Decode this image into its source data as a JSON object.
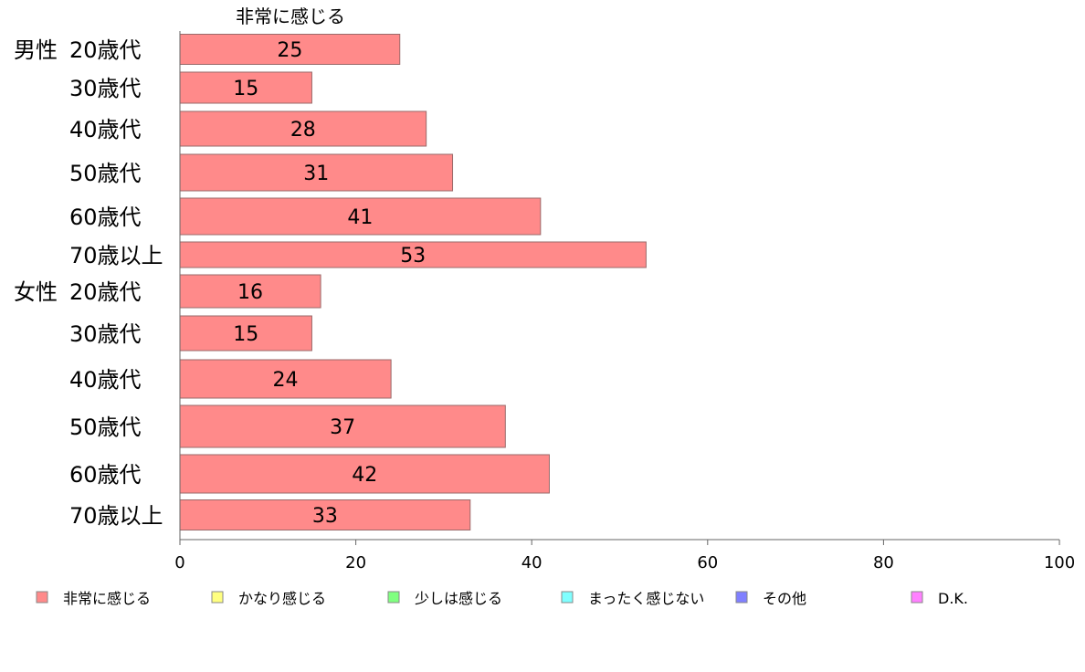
{
  "chart_data": {
    "type": "bar",
    "orientation": "horizontal",
    "stacked": true,
    "series_title": "非常に感じる",
    "groups": [
      {
        "label": "男性",
        "categories": [
          "20歳代",
          "30歳代",
          "40歳代",
          "50歳代",
          "60歳代",
          "70歳以上"
        ]
      },
      {
        "label": "女性",
        "categories": [
          "20歳代",
          "30歳代",
          "40歳代",
          "50歳代",
          "60歳代",
          "70歳以上"
        ]
      }
    ],
    "series": [
      {
        "name": "非常に感じる",
        "color": "#ff8a8a",
        "values": [
          25,
          15,
          28,
          31,
          41,
          53,
          16,
          15,
          24,
          37,
          42,
          33
        ]
      }
    ],
    "xlim": [
      0,
      100
    ],
    "xticks": [
      "0",
      "20",
      "40",
      "60",
      "80",
      "100"
    ],
    "grid": false,
    "legend": {
      "position": "bottom",
      "items": [
        {
          "label": "非常に感じる",
          "color": "#ff8a8a"
        },
        {
          "label": "かなり感じる",
          "color": "#ffff80"
        },
        {
          "label": "少しは感じる",
          "color": "#80ff80"
        },
        {
          "label": "まったく感じない",
          "color": "#80ffff"
        },
        {
          "label": "その他",
          "color": "#8080ff"
        },
        {
          "label": "D.K.",
          "color": "#ff80ff"
        }
      ]
    }
  }
}
